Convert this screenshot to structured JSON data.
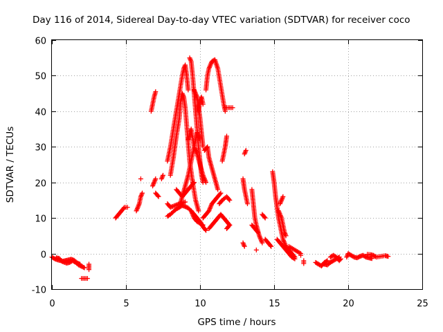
{
  "chart_data": {
    "type": "scatter",
    "title": "Day 116 of 2014, Sidereal Day-to-day VTEC variation (SDTVAR) for receiver coco",
    "xlabel": "GPS time / hours",
    "ylabel": "SDTVAR / TECUs",
    "xlim": [
      0,
      25
    ],
    "ylim": [
      -10,
      60
    ],
    "xticks": [
      0,
      5,
      10,
      15,
      20,
      25
    ],
    "yticks": [
      -10,
      0,
      10,
      20,
      30,
      40,
      50,
      60
    ],
    "xtick_labels": [
      "0",
      "5",
      "10",
      "15",
      "20",
      "25"
    ],
    "ytick_labels": [
      "-10",
      "0",
      "10",
      "20",
      "30",
      "40",
      "50",
      "60"
    ],
    "grid": true,
    "marker": "+",
    "color": "#ff0000",
    "series": [
      {
        "name": "SDTVAR",
        "segments": [
          [
            [
              0.0,
              -1.0
            ],
            [
              0.2,
              -1.5
            ],
            [
              0.4,
              -1.8
            ],
            [
              0.6,
              -2.0
            ],
            [
              0.8,
              -2.4
            ],
            [
              1.0,
              -2.7
            ],
            [
              1.2,
              -2.5
            ],
            [
              1.4,
              -2.0
            ],
            [
              1.6,
              -2.5
            ],
            [
              1.8,
              -3.2
            ],
            [
              2.0,
              -3.6
            ],
            [
              2.2,
              -4.0
            ]
          ],
          [
            [
              0.3,
              -1.2
            ],
            [
              0.5,
              -1.4
            ],
            [
              0.7,
              -2.2
            ],
            [
              0.9,
              -2.0
            ],
            [
              1.1,
              -1.8
            ],
            [
              1.3,
              -1.6
            ],
            [
              1.5,
              -1.9
            ],
            [
              1.7,
              -2.6
            ],
            [
              1.9,
              -3.0
            ]
          ],
          [
            [
              2.5,
              -3.0
            ],
            [
              2.5,
              -4.5
            ]
          ],
          [
            [
              2.0,
              -7.0
            ],
            [
              2.4,
              -7.0
            ]
          ],
          [
            [
              4.3,
              10
            ],
            [
              4.5,
              11
            ],
            [
              4.7,
              12
            ],
            [
              4.9,
              13
            ],
            [
              5.1,
              13
            ]
          ],
          [
            [
              5.7,
              12
            ],
            [
              5.9,
              14
            ],
            [
              6.0,
              16
            ],
            [
              6.1,
              17
            ]
          ],
          [
            [
              6.0,
              21
            ]
          ],
          [
            [
              6.7,
              40
            ],
            [
              6.8,
              42
            ],
            [
              6.9,
              44
            ],
            [
              7.0,
              45.5
            ]
          ],
          [
            [
              6.8,
              19
            ],
            [
              6.9,
              20
            ],
            [
              7.0,
              21
            ]
          ],
          [
            [
              7.0,
              17
            ],
            [
              7.2,
              16
            ]
          ],
          [
            [
              7.4,
              21
            ],
            [
              7.5,
              22
            ]
          ],
          [
            [
              7.8,
              10.5
            ],
            [
              8.0,
              11.0
            ],
            [
              8.2,
              11.8
            ],
            [
              8.4,
              12.5
            ],
            [
              8.6,
              13.0
            ],
            [
              8.8,
              13.5
            ],
            [
              9.0,
              13.2
            ],
            [
              9.2,
              12.8
            ],
            [
              9.4,
              12.0
            ],
            [
              9.6,
              11.0
            ],
            [
              9.8,
              10.0
            ],
            [
              10.0,
              9.0
            ],
            [
              10.2,
              7.5
            ],
            [
              10.4,
              6.5
            ]
          ],
          [
            [
              7.8,
              14.0
            ],
            [
              8.0,
              13.0
            ],
            [
              8.3,
              13.5
            ],
            [
              8.6,
              14.0
            ],
            [
              9.0,
              14.5
            ]
          ],
          [
            [
              7.8,
              26
            ],
            [
              8.0,
              30
            ],
            [
              8.2,
              35
            ],
            [
              8.4,
              40
            ],
            [
              8.6,
              45
            ],
            [
              8.8,
              50
            ],
            [
              8.9,
              52
            ],
            [
              9.0,
              53
            ],
            [
              9.1,
              50
            ],
            [
              9.2,
              46
            ]
          ],
          [
            [
              8.0,
              22
            ],
            [
              8.2,
              27
            ],
            [
              8.4,
              33
            ],
            [
              8.6,
              38
            ],
            [
              8.7,
              43
            ],
            [
              8.8,
              45
            ],
            [
              8.9,
              44
            ],
            [
              9.0,
              41
            ],
            [
              9.1,
              36
            ],
            [
              9.2,
              31
            ],
            [
              9.3,
              26
            ],
            [
              9.5,
              20
            ],
            [
              9.7,
              15
            ],
            [
              9.9,
              12
            ]
          ],
          [
            [
              8.4,
              18
            ],
            [
              8.6,
              17
            ],
            [
              8.8,
              16
            ],
            [
              9.0,
              17
            ],
            [
              9.2,
              18
            ],
            [
              9.4,
              19
            ],
            [
              9.6,
              20
            ]
          ],
          [
            [
              8.6,
              13
            ],
            [
              8.8,
              16
            ],
            [
              9.0,
              19
            ],
            [
              9.2,
              22
            ],
            [
              9.4,
              26
            ],
            [
              9.6,
              30
            ],
            [
              9.8,
              34
            ],
            [
              10.0,
              32
            ]
          ],
          [
            [
              9.2,
              32
            ],
            [
              9.4,
              35
            ],
            [
              9.6,
              30
            ],
            [
              9.8,
              28
            ],
            [
              10.0,
              25
            ],
            [
              10.2,
              22
            ],
            [
              10.4,
              20
            ]
          ],
          [
            [
              9.3,
              55
            ],
            [
              9.4,
              54
            ],
            [
              9.5,
              50
            ],
            [
              9.6,
              45
            ],
            [
              9.7,
              40
            ],
            [
              9.8,
              35
            ],
            [
              9.9,
              30
            ],
            [
              10.0,
              26
            ],
            [
              10.1,
              22
            ],
            [
              10.2,
              20
            ]
          ],
          [
            [
              9.4,
              12
            ],
            [
              9.6,
              10
            ],
            [
              9.8,
              9
            ],
            [
              10.0,
              8.5
            ],
            [
              10.2,
              8
            ]
          ],
          [
            [
              9.6,
              46
            ],
            [
              9.7,
              45
            ],
            [
              9.8,
              44
            ],
            [
              9.9,
              41
            ],
            [
              10.0,
              38
            ],
            [
              10.1,
              34
            ],
            [
              10.2,
              30
            ]
          ],
          [
            [
              9.9,
              40
            ],
            [
              10.0,
              43
            ],
            [
              10.1,
              44
            ],
            [
              10.2,
              42
            ]
          ],
          [
            [
              10.2,
              10
            ],
            [
              10.4,
              11
            ],
            [
              10.6,
              12
            ],
            [
              10.8,
              14
            ],
            [
              11.0,
              15
            ],
            [
              11.2,
              16
            ],
            [
              11.4,
              17
            ]
          ],
          [
            [
              10.3,
              29
            ],
            [
              10.5,
              30
            ],
            [
              10.6,
              27
            ],
            [
              10.8,
              24
            ],
            [
              11.0,
              21
            ],
            [
              11.2,
              18
            ]
          ],
          [
            [
              10.4,
              46
            ],
            [
              10.5,
              50
            ],
            [
              10.6,
              52
            ],
            [
              10.8,
              54
            ],
            [
              11.0,
              54.5
            ],
            [
              11.2,
              52
            ],
            [
              11.4,
              47
            ],
            [
              11.6,
              42
            ],
            [
              11.7,
              40
            ]
          ],
          [
            [
              10.6,
              7
            ],
            [
              10.8,
              8
            ],
            [
              11.0,
              9
            ],
            [
              11.2,
              10
            ],
            [
              11.4,
              11
            ],
            [
              11.6,
              10
            ],
            [
              11.8,
              9
            ],
            [
              12.0,
              8
            ]
          ],
          [
            [
              11.3,
              14
            ],
            [
              11.5,
              15
            ],
            [
              11.8,
              16
            ],
            [
              12.0,
              15
            ]
          ],
          [
            [
              11.5,
              26
            ],
            [
              11.6,
              28
            ],
            [
              11.7,
              30
            ],
            [
              11.8,
              33
            ]
          ],
          [
            [
              11.7,
              41
            ],
            [
              12.0,
              41
            ],
            [
              12.2,
              41
            ]
          ],
          [
            [
              11.8,
              7
            ],
            [
              12.0,
              8
            ]
          ],
          [
            [
              12.9,
              3
            ],
            [
              13.0,
              2
            ]
          ],
          [
            [
              12.9,
              21
            ],
            [
              13.0,
              18
            ],
            [
              13.1,
              16
            ],
            [
              13.2,
              14
            ]
          ],
          [
            [
              13.0,
              28
            ],
            [
              13.1,
              29
            ]
          ],
          [
            [
              13.5,
              18
            ],
            [
              13.6,
              14
            ],
            [
              13.7,
              10
            ],
            [
              13.8,
              8
            ],
            [
              14.0,
              5
            ],
            [
              14.2,
              3
            ]
          ],
          [
            [
              13.5,
              8
            ],
            [
              13.7,
              7
            ],
            [
              13.9,
              6
            ]
          ],
          [
            [
              13.8,
              1
            ]
          ],
          [
            [
              14.2,
              11
            ],
            [
              14.4,
              10
            ]
          ],
          [
            [
              14.4,
              4
            ],
            [
              14.6,
              3
            ],
            [
              14.8,
              2
            ]
          ],
          [
            [
              14.9,
              23
            ],
            [
              15.0,
              20
            ],
            [
              15.1,
              16
            ],
            [
              15.2,
              13
            ],
            [
              15.3,
              10
            ],
            [
              15.4,
              8
            ],
            [
              15.5,
              6
            ],
            [
              15.6,
              4
            ],
            [
              15.8,
              2
            ],
            [
              16.0,
              1
            ],
            [
              16.2,
              0
            ],
            [
              16.4,
              -1
            ]
          ],
          [
            [
              15.2,
              4
            ],
            [
              15.4,
              3
            ],
            [
              15.6,
              2
            ],
            [
              15.8,
              1
            ],
            [
              16.0,
              0
            ],
            [
              16.2,
              -1
            ],
            [
              16.4,
              -1.5
            ]
          ],
          [
            [
              15.3,
              12
            ],
            [
              15.5,
              10
            ],
            [
              15.6,
              8
            ],
            [
              15.7,
              6
            ],
            [
              15.8,
              5
            ]
          ],
          [
            [
              15.4,
              14
            ],
            [
              15.5,
              15
            ],
            [
              15.6,
              16
            ]
          ],
          [
            [
              16.0,
              2
            ],
            [
              16.4,
              1
            ],
            [
              16.8,
              0
            ]
          ],
          [
            [
              16.8,
              -0.5
            ]
          ],
          [
            [
              17.0,
              -2
            ],
            [
              17.0,
              -2.8
            ]
          ],
          [
            [
              17.8,
              -2.5
            ],
            [
              18.0,
              -3.0
            ],
            [
              18.2,
              -3.5
            ],
            [
              18.4,
              -2.5
            ],
            [
              18.6,
              -2.0
            ]
          ],
          [
            [
              18.4,
              -3.0
            ],
            [
              18.6,
              -3.2
            ],
            [
              18.8,
              -2.5
            ],
            [
              19.0,
              -2.0
            ],
            [
              19.2,
              -1.5
            ],
            [
              19.4,
              -1.0
            ]
          ],
          [
            [
              18.8,
              -1.0
            ],
            [
              19.0,
              -0.5
            ],
            [
              19.2,
              -1.0
            ],
            [
              19.4,
              -2.0
            ],
            [
              19.5,
              -1.5
            ]
          ],
          [
            [
              19.9,
              -1.0
            ],
            [
              20.0,
              0
            ],
            [
              20.2,
              -0.5
            ],
            [
              20.4,
              -1.0
            ],
            [
              20.6,
              -1.2
            ],
            [
              20.8,
              -0.8
            ],
            [
              21.0,
              -0.5
            ],
            [
              21.2,
              -1.0
            ],
            [
              21.4,
              -1.2
            ],
            [
              21.6,
              -1.4
            ]
          ],
          [
            [
              21.3,
              -0.2
            ],
            [
              21.5,
              -0.3
            ],
            [
              21.7,
              -0.5
            ],
            [
              21.9,
              -1.0
            ],
            [
              22.2,
              -0.8
            ],
            [
              22.5,
              -0.6
            ],
            [
              22.7,
              -0.8
            ]
          ]
        ]
      }
    ]
  }
}
